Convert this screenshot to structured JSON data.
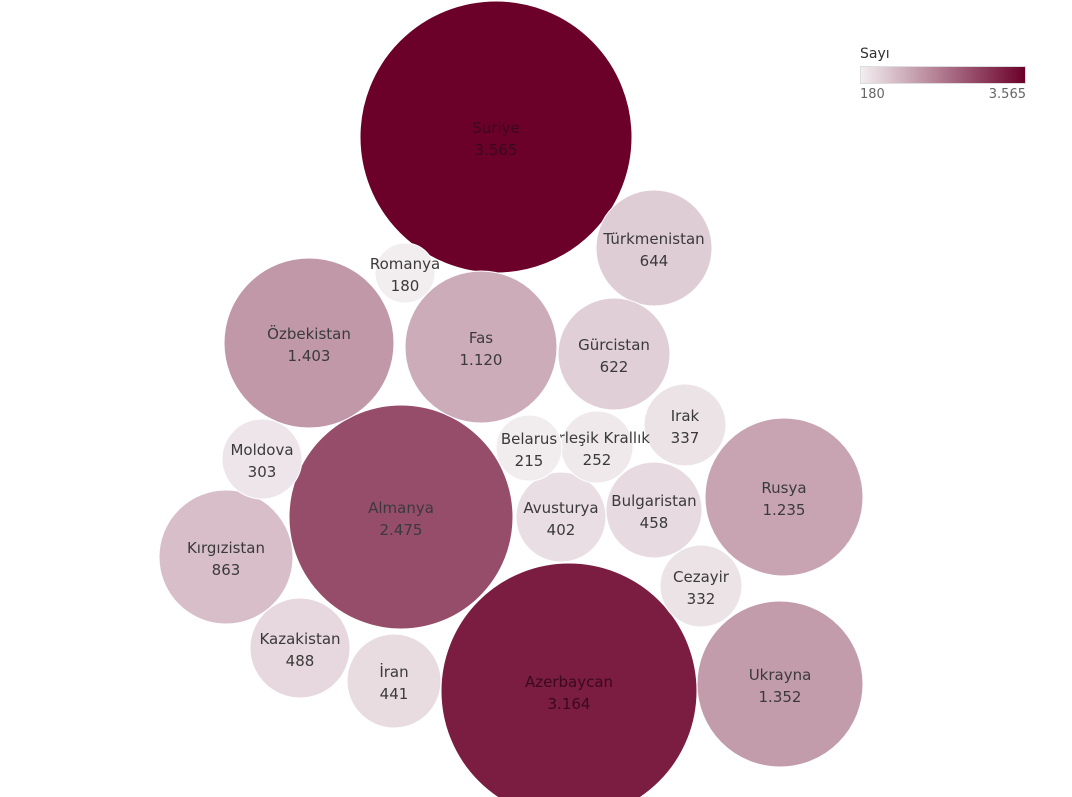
{
  "chart_data": {
    "type": "bubble",
    "legend": {
      "title": "Sayı",
      "min_label": "180",
      "max_label": "3.565",
      "min_value": 180,
      "max_value": 3565,
      "color_low": "#f2eef0",
      "color_high": "#6b0029"
    },
    "points": [
      {
        "label": "Suriye",
        "value_label": "3.565",
        "value": 3565
      },
      {
        "label": "Azerbaycan",
        "value_label": "3.164",
        "value": 3164
      },
      {
        "label": "Almanya",
        "value_label": "2.475",
        "value": 2475
      },
      {
        "label": "Özbekistan",
        "value_label": "1.403",
        "value": 1403
      },
      {
        "label": "Ukrayna",
        "value_label": "1.352",
        "value": 1352
      },
      {
        "label": "Rusya",
        "value_label": "1.235",
        "value": 1235
      },
      {
        "label": "Fas",
        "value_label": "1.120",
        "value": 1120
      },
      {
        "label": "Kırgızistan",
        "value_label": "863",
        "value": 863
      },
      {
        "label": "Türkmenistan",
        "value_label": "644",
        "value": 644
      },
      {
        "label": "Gürcistan",
        "value_label": "622",
        "value": 622
      },
      {
        "label": "Kazakistan",
        "value_label": "488",
        "value": 488
      },
      {
        "label": "Bulgaristan",
        "value_label": "458",
        "value": 458
      },
      {
        "label": "İran",
        "value_label": "441",
        "value": 441
      },
      {
        "label": "Avusturya",
        "value_label": "402",
        "value": 402
      },
      {
        "label": "Irak",
        "value_label": "337",
        "value": 337
      },
      {
        "label": "Cezayir",
        "value_label": "332",
        "value": 332
      },
      {
        "label": "Moldova",
        "value_label": "303",
        "value": 303
      },
      {
        "label": "Birleşik Krallık",
        "value_label": "252",
        "value": 252
      },
      {
        "label": "Belarus",
        "value_label": "215",
        "value": 215
      },
      {
        "label": "Romanya",
        "value_label": "180",
        "value": 180
      }
    ]
  }
}
